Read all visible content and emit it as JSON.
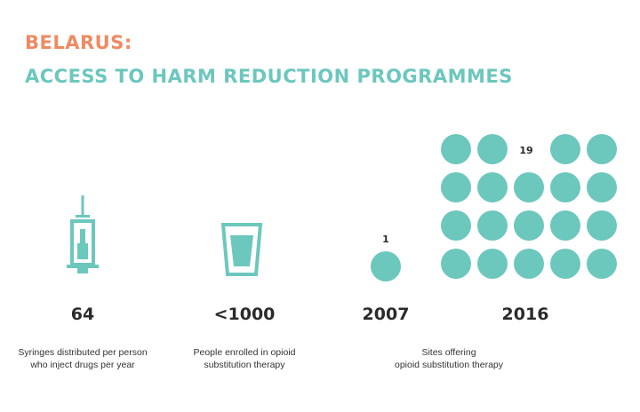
{
  "title": {
    "line1": "BELARUS:",
    "line2": "ACCESS TO HARM REDUCTION PROGRAMMES"
  },
  "colors": {
    "accent_orange": "#ef8a62",
    "accent_teal": "#6cc7bd",
    "text": "#2b2b2b"
  },
  "stats": {
    "syringes": {
      "icon": "syringe-icon",
      "value": "64",
      "caption_line1": "Syringes distributed per person",
      "caption_line2": "who inject drugs per year"
    },
    "ost_people": {
      "icon": "cup-icon",
      "value": "<1000",
      "caption_line1": "People enrolled in opioid",
      "caption_line2": "substitution therapy"
    },
    "ost_sites": {
      "caption_line1": "Sites offering",
      "caption_line2": "opioid substitution therapy",
      "y2007": {
        "year": "2007",
        "count_label": "1",
        "count": 1
      },
      "y2016": {
        "year": "2016",
        "count_label": "19",
        "count": 19
      }
    }
  }
}
